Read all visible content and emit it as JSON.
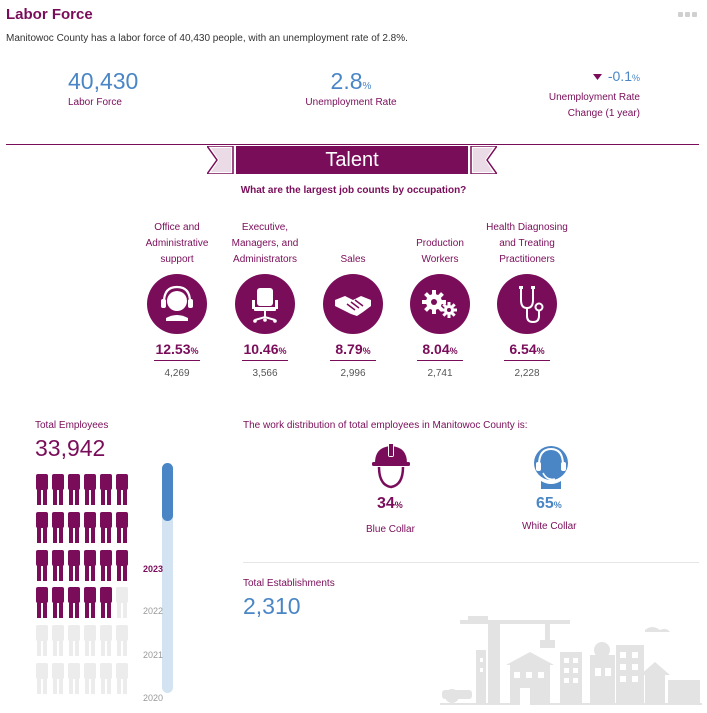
{
  "header": {
    "title": "Labor Force",
    "summary": "Manitowoc County has a labor force of 40,430 people, with an unemployment rate of 2.8%."
  },
  "kpis": {
    "labor_force": {
      "value": "40,430",
      "label": "Labor Force"
    },
    "unemployment_rate": {
      "value": "2.8",
      "unit": "%",
      "label": "Unemployment Rate"
    },
    "unemployment_change": {
      "value": "-0.1",
      "unit": "%",
      "label_line1": "Unemployment Rate",
      "label_line2": "Change (1 year)",
      "direction": "down"
    }
  },
  "talent": {
    "banner": "Talent",
    "question": "What are the largest job counts by occupation?",
    "occupations": [
      {
        "lines": [
          "Office and",
          "Administrative",
          "support"
        ],
        "pct": "12.53",
        "unit": "%",
        "count": "4,269",
        "icon": "headset-person-icon"
      },
      {
        "lines": [
          "Executive,",
          "Managers, and",
          "Administrators"
        ],
        "pct": "10.46",
        "unit": "%",
        "count": "3,566",
        "icon": "office-chair-icon"
      },
      {
        "lines": [
          "Sales"
        ],
        "pct": "8.79",
        "unit": "%",
        "count": "2,996",
        "icon": "handshake-icon"
      },
      {
        "lines": [
          "Production",
          "Workers"
        ],
        "pct": "8.04",
        "unit": "%",
        "count": "2,741",
        "icon": "gears-icon"
      },
      {
        "lines": [
          "Health Diagnosing",
          "and Treating",
          "Practitioners"
        ],
        "pct": "6.54",
        "unit": "%",
        "count": "2,228",
        "icon": "stethoscope-icon"
      }
    ]
  },
  "employees": {
    "label": "Total Employees",
    "value": "33,942",
    "years": [
      "2023",
      "2022",
      "2021",
      "2020"
    ],
    "selected_year": "2023"
  },
  "work_distribution": {
    "label": "The work distribution of total employees in Manitowoc County is:",
    "blue_collar": {
      "pct": "34",
      "unit": "%",
      "label": "Blue Collar",
      "icon": "hard-hat-icon"
    },
    "white_collar": {
      "pct": "65",
      "unit": "%",
      "label": "White Collar",
      "icon": "headset-person-icon"
    }
  },
  "establishments": {
    "label": "Total Establishments",
    "value": "2,310"
  },
  "colors": {
    "primary": "#7a0d5a",
    "accent": "#4a86c6",
    "figure_inactive": "#ececec"
  }
}
